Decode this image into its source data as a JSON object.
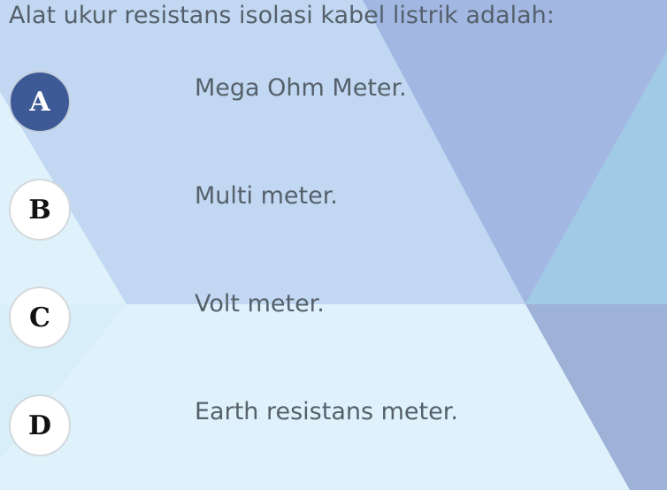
{
  "question": {
    "text": "Alat ukur resistans isolasi kabel listrik adalah:"
  },
  "options": [
    {
      "letter": "A",
      "text": "Mega Ohm Meter.",
      "selected": true
    },
    {
      "letter": "B",
      "text": "Multi meter.",
      "selected": false
    },
    {
      "letter": "C",
      "text": "Volt meter.",
      "selected": false
    },
    {
      "letter": "D",
      "text": "Earth resistans meter.",
      "selected": false
    }
  ],
  "colors": {
    "selected_badge": "#3d5a96",
    "text": "#55606b",
    "background": "#dff2fb"
  }
}
